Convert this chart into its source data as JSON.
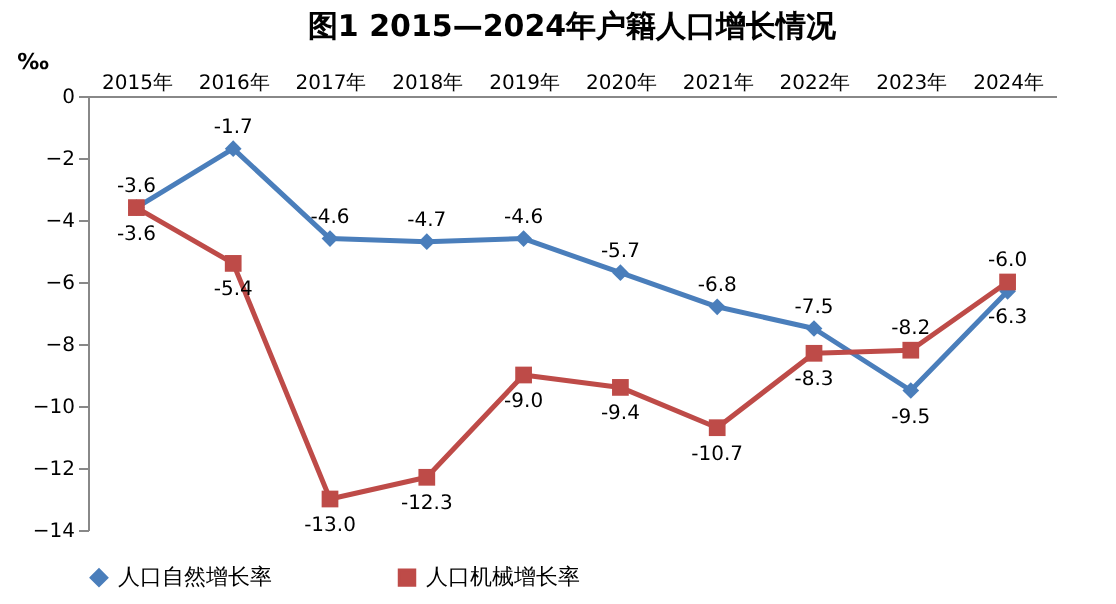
{
  "chart_data": {
    "type": "line",
    "title": "图1 2015—2024年户籍人口增长情况",
    "ylabel": "‰",
    "categories": [
      "2015年",
      "2016年",
      "2017年",
      "2018年",
      "2019年",
      "2020年",
      "2021年",
      "2022年",
      "2023年",
      "2024年"
    ],
    "series": [
      {
        "name": "人口自然增长率",
        "color": "#4a7ebb",
        "marker": "diamond",
        "values": [
          -3.6,
          -1.7,
          -4.6,
          -4.7,
          -4.6,
          -5.7,
          -6.8,
          -7.5,
          -9.5,
          -6.3
        ],
        "value_labels": [
          "-3.6",
          "-1.7",
          "-4.6",
          "-4.7",
          "-4.6",
          "-5.7",
          "-6.8",
          "-7.5",
          "-9.5",
          "-6.3"
        ]
      },
      {
        "name": "人口机械增长率",
        "color": "#be4b48",
        "marker": "square",
        "values": [
          -3.6,
          -5.4,
          -13.0,
          -12.3,
          -9.0,
          -9.4,
          -10.7,
          -8.3,
          -8.2,
          -6.0
        ],
        "value_labels": [
          "-3.6",
          "-5.4",
          "-13.0",
          "-12.3",
          "-9.0",
          "-9.4",
          "-10.7",
          "-8.3",
          "-8.2",
          "-6.0"
        ]
      }
    ],
    "ylim": [
      -14,
      0
    ],
    "yticks": [
      0,
      -2,
      -4,
      -6,
      -8,
      -10,
      -12,
      -14
    ],
    "grid": false,
    "legend": "bottom",
    "line_style": "solid"
  }
}
